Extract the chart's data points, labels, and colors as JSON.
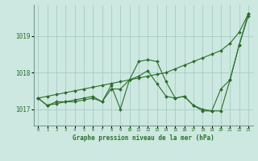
{
  "xlabel": "Graphe pression niveau de la mer (hPa)",
  "x": [
    0,
    1,
    2,
    3,
    4,
    5,
    6,
    7,
    8,
    9,
    10,
    11,
    12,
    13,
    14,
    15,
    16,
    17,
    18,
    19,
    20,
    21,
    22,
    23
  ],
  "series1": [
    1017.3,
    1017.1,
    1017.2,
    1017.2,
    1017.2,
    1017.25,
    1017.3,
    1017.2,
    1017.65,
    1017.0,
    1017.8,
    1018.3,
    1018.35,
    1018.3,
    1017.75,
    1017.3,
    1017.35,
    1017.1,
    1017.0,
    1016.95,
    1016.95,
    1017.8,
    1018.75,
    1019.55
  ],
  "series2": [
    1017.3,
    1017.1,
    1017.15,
    1017.2,
    1017.25,
    1017.3,
    1017.35,
    1017.2,
    1017.55,
    1017.55,
    1017.8,
    1017.9,
    1018.05,
    1017.7,
    1017.35,
    1017.3,
    1017.35,
    1017.1,
    1016.95,
    1016.95,
    1017.55,
    1017.8,
    1018.75,
    1019.6
  ],
  "series3": [
    1017.3,
    1017.35,
    1017.4,
    1017.45,
    1017.5,
    1017.55,
    1017.6,
    1017.65,
    1017.7,
    1017.75,
    1017.8,
    1017.85,
    1017.9,
    1017.95,
    1018.0,
    1018.1,
    1018.2,
    1018.3,
    1018.4,
    1018.5,
    1018.6,
    1018.8,
    1019.1,
    1019.6
  ],
  "line_color": "#2d6e2d",
  "bg_color": "#cce8e0",
  "grid_color": "#a0c8c0",
  "text_color": "#2d6e2d",
  "ylim_min": 1016.55,
  "ylim_max": 1019.85,
  "yticks": [
    1017,
    1018,
    1019
  ],
  "marker": "D",
  "marker_size": 2.0
}
